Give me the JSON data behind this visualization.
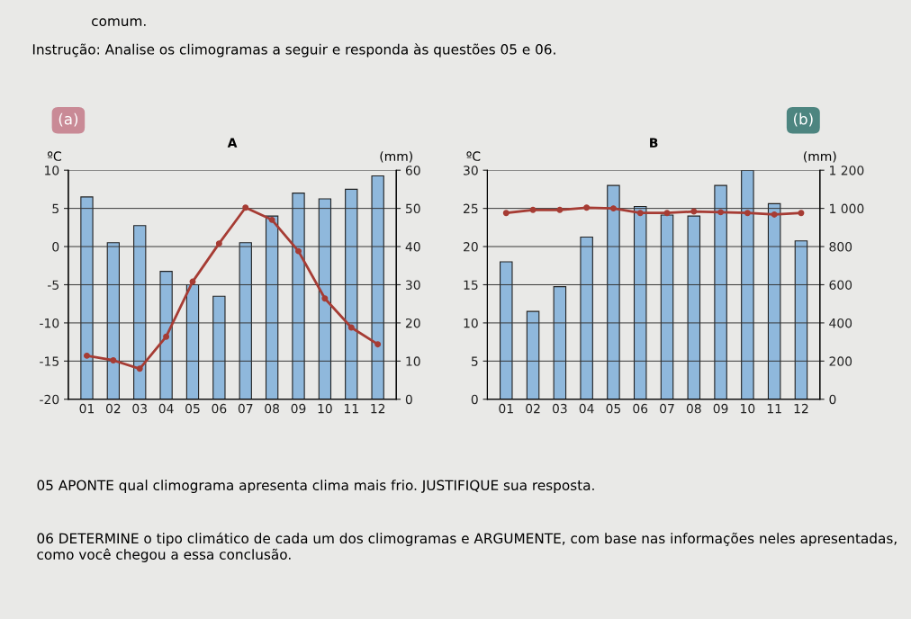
{
  "chart_data": [
    {
      "type": "bar",
      "title": "A",
      "subtitle": "(a)",
      "ylabel": "ºC",
      "y2label": "(mm)",
      "categories": [
        "01",
        "02",
        "03",
        "04",
        "05",
        "06",
        "07",
        "08",
        "09",
        "10",
        "11",
        "12"
      ],
      "series": [
        {
          "axis": "y2",
          "color": "#8fb8dc",
          "values": [
            53,
            41,
            45.5,
            33.5,
            30,
            27,
            41,
            48,
            54,
            52.5,
            55,
            58.5
          ]
        },
        {
          "type": "line",
          "axis": "y",
          "color": "#a63c34",
          "marker": "circle",
          "values": [
            -14.3,
            -14.9,
            -16,
            -11.8,
            -4.6,
            0.4,
            5.1,
            3.5,
            -0.6,
            -6.8,
            -10.6,
            -12.8
          ]
        }
      ],
      "ylim": [
        -20,
        10
      ],
      "yticks": [
        -20,
        -15,
        -10,
        -5,
        0,
        5,
        10
      ],
      "y2lim": [
        0,
        60
      ],
      "y2ticks": [
        0,
        10,
        20,
        30,
        40,
        50,
        60
      ],
      "grid": "y",
      "annotations": [
        "comum.",
        "Instrução: Analise os climogramas a seguir e responda às questões 05 e 06."
      ]
    },
    {
      "type": "bar",
      "title": "B",
      "subtitle": "(b)",
      "ylabel": "ºC",
      "y2label": "(mm)",
      "categories": [
        "01",
        "02",
        "03",
        "04",
        "05",
        "06",
        "07",
        "08",
        "09",
        "10",
        "11",
        "12"
      ],
      "series": [
        {
          "axis": "y2",
          "color": "#8fb8dc",
          "values": [
            720,
            460,
            590,
            850,
            1120,
            1010,
            965,
            960,
            1120,
            1200,
            1025,
            830
          ]
        },
        {
          "type": "line",
          "axis": "y",
          "color": "#a63c34",
          "marker": "circle",
          "values": [
            24.4,
            24.8,
            24.8,
            25.1,
            25,
            24.4,
            24.4,
            24.6,
            24.5,
            24.4,
            24.2,
            24.4
          ]
        }
      ],
      "ylim": [
        0,
        30
      ],
      "yticks": [
        0,
        5,
        10,
        15,
        20,
        25,
        30
      ],
      "y2lim": [
        0,
        1200
      ],
      "y2ticks": [
        0,
        200,
        400,
        600,
        800,
        {
          "value": 1000,
          "label": "1 000"
        },
        {
          "value": 1200,
          "label": "1 200"
        }
      ],
      "grid": "y",
      "annotations": [
        "05 APONTE qual climograma apresenta clima mais frio. JUSTIFIQUE sua resposta.",
        "06 DETERMINE o tipo climático de cada um dos climogramas e ARGUMENTE, com base nas informações neles apresentadas, como você chegou a essa conclusão."
      ]
    }
  ]
}
